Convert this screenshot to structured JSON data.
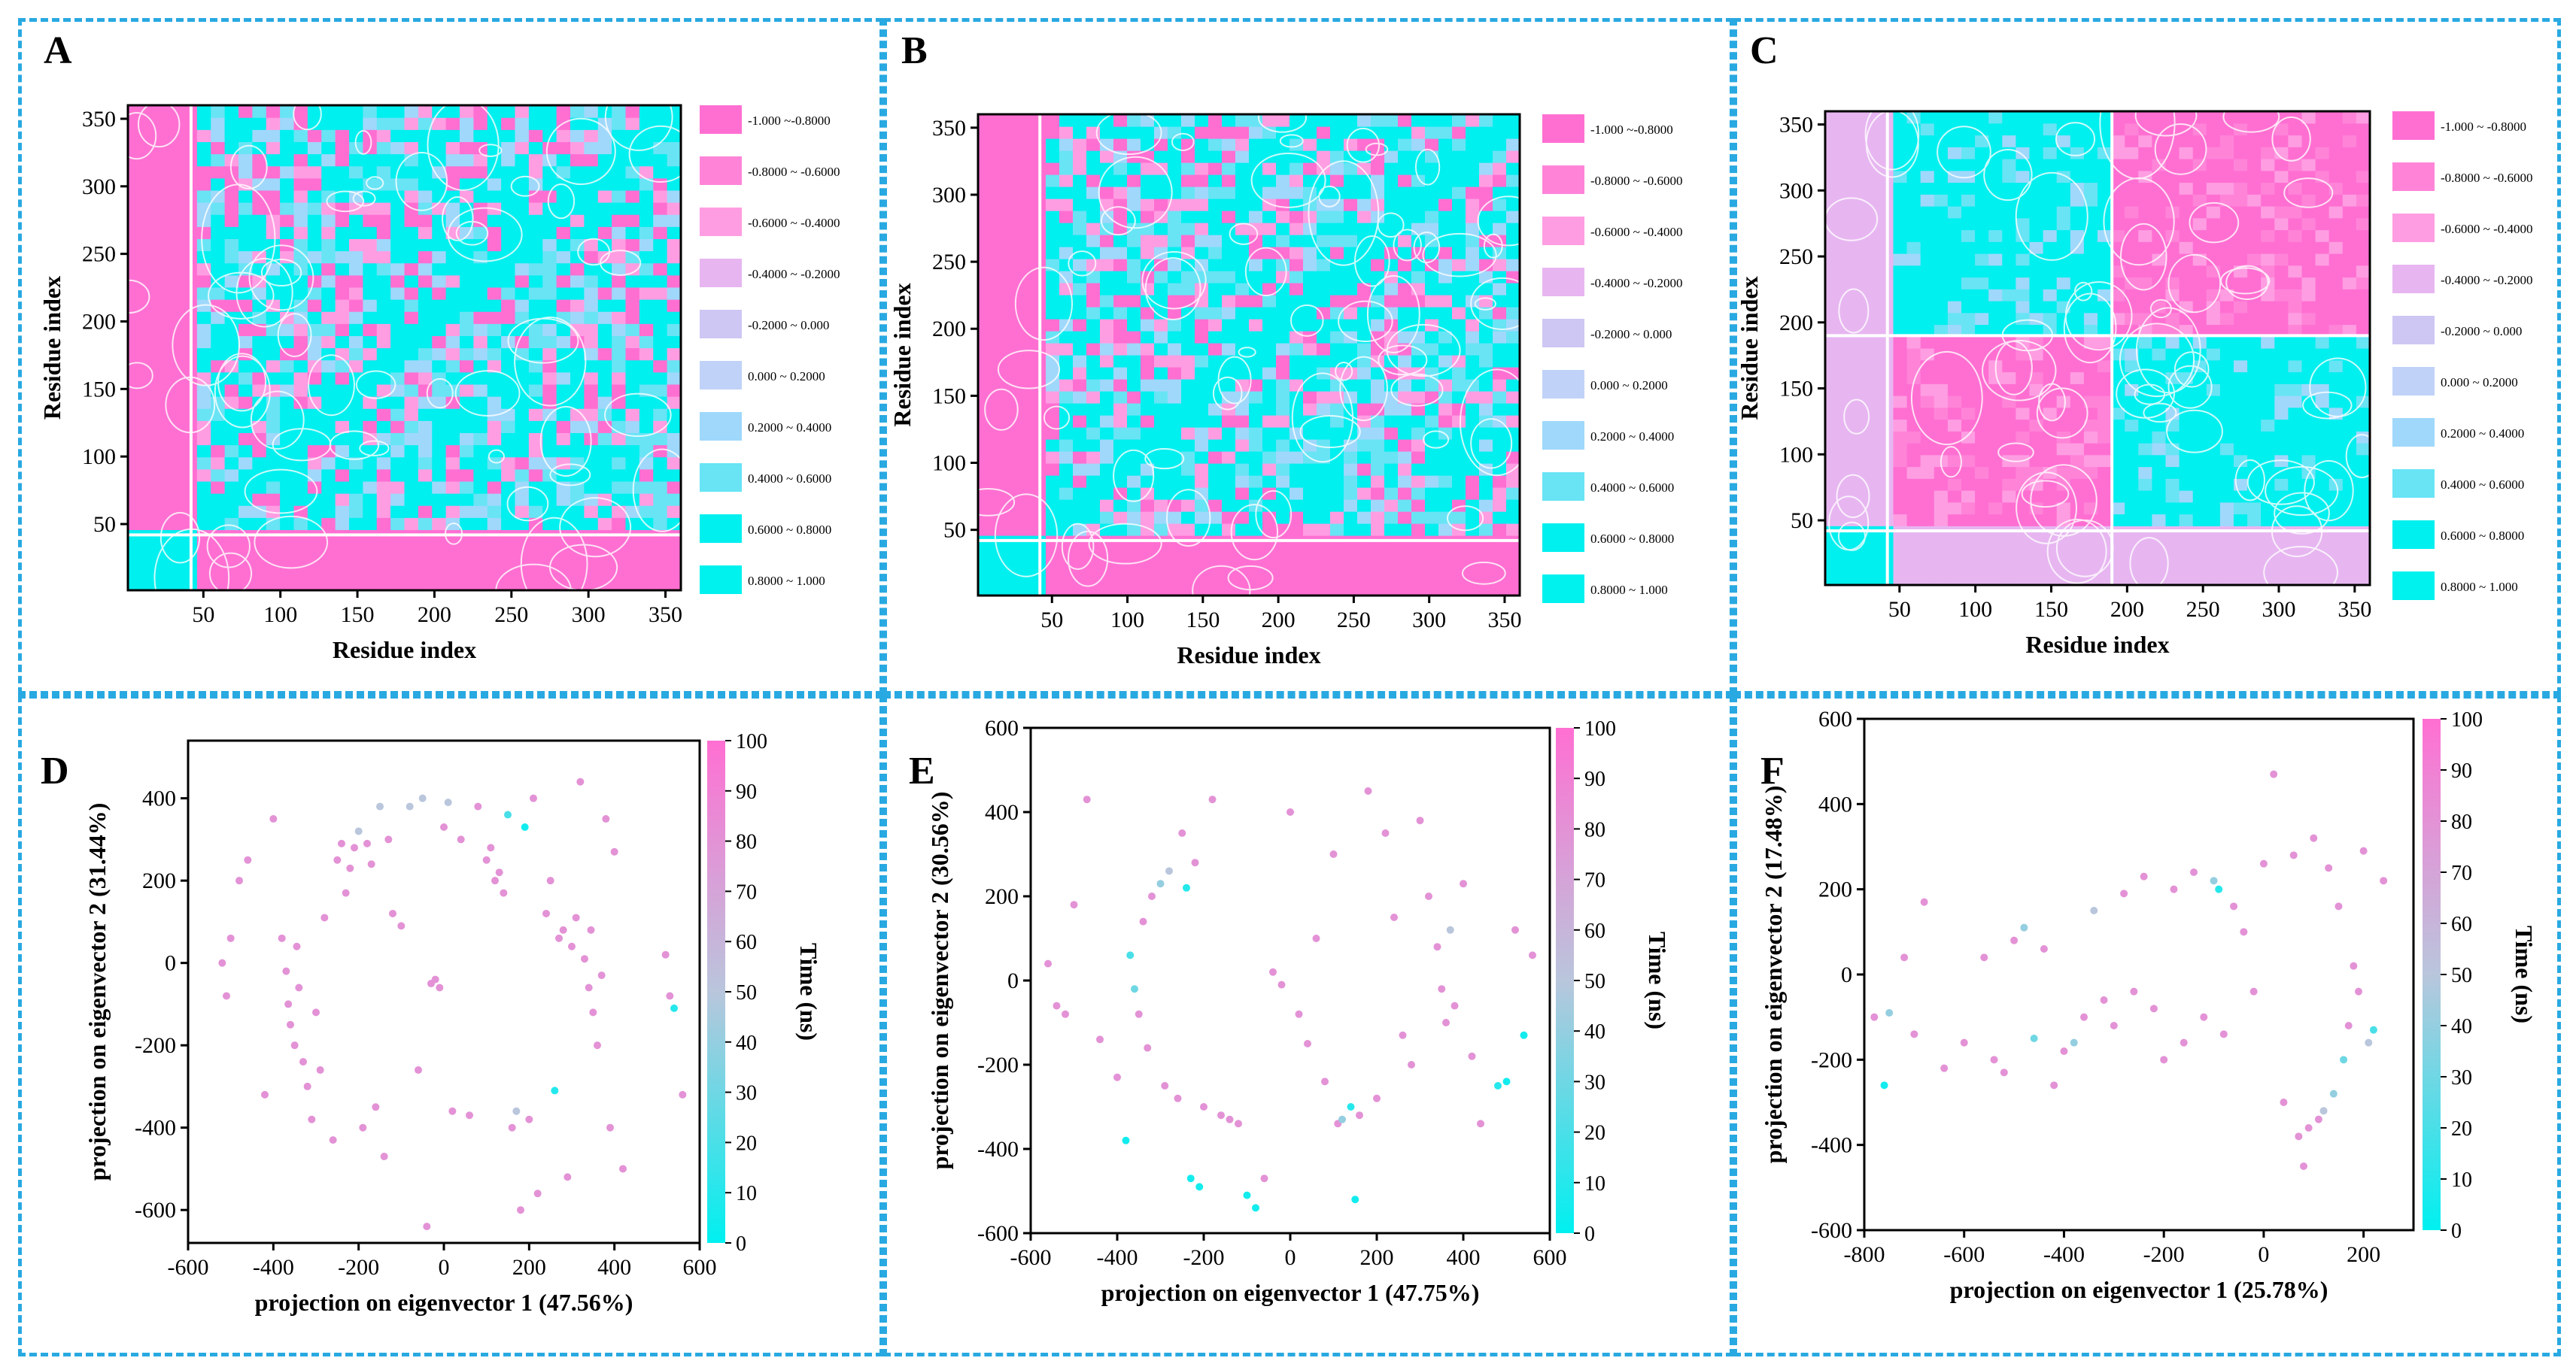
{
  "colors": {
    "frame": "#29a9e1",
    "pink": "#ff6fd2",
    "cyan": "#00efef",
    "light_pink": "#fbd0f1",
    "light_blue": "#b9e3ff",
    "scale": [
      "#ff6fd2",
      "#ff84d8",
      "#ff9de2",
      "#e7b6f1",
      "#cec7f4",
      "#c0d2f8",
      "#9fd8fb",
      "#68e4f5",
      "#00efef",
      "#00f2ee"
    ]
  },
  "legend_labels": [
    "-1.000  ~-0.8000",
    "-0.8000 ~ -0.6000",
    "-0.6000 ~ -0.4000",
    "-0.4000 ~ -0.2000",
    "-0.2000 ~ 0.000",
    "0.000   ~ 0.2000",
    "0.2000 ~ 0.4000",
    "0.4000 ~ 0.6000",
    "0.6000 ~ 0.8000",
    "0.8000 ~ 1.000"
  ],
  "legend_labels_c": [
    "-1.000  ~ -0.8000",
    "-0.8000 ~ -0.6000",
    "-0.6000 ~ -0.4000",
    "-0.4000 ~ -0.2000",
    "-0.2000 ~ 0.000",
    "0.000   ~ 0.2000",
    "0.2000 ~ 0.4000",
    "0.4000 ~ 0.6000",
    "0.6000 ~ 0.8000",
    "0.8000 ~ 1.000"
  ],
  "chart_data": [
    {
      "panel": "A",
      "type": "heatmap",
      "title": "",
      "xlabel": "Residue index",
      "ylabel": "Residue index",
      "xlim": [
        1,
        360
      ],
      "ylim": [
        1,
        360
      ],
      "xticks": [
        50,
        100,
        150,
        200,
        250,
        300,
        350
      ],
      "yticks": [
        50,
        100,
        150,
        200,
        250,
        300,
        350
      ],
      "value_range": [
        -1,
        1
      ],
      "split_residue": 0
    },
    {
      "panel": "B",
      "type": "heatmap",
      "title": "",
      "xlabel": "Residue index",
      "ylabel": "Residue index",
      "xlim": [
        1,
        360
      ],
      "ylim": [
        1,
        360
      ],
      "xticks": [
        50,
        100,
        150,
        200,
        250,
        300,
        350
      ],
      "yticks": [
        50,
        100,
        150,
        200,
        250,
        300,
        350
      ],
      "value_range": [
        -1,
        1
      ],
      "split_residue": 0
    },
    {
      "panel": "C",
      "type": "heatmap",
      "title": "",
      "xlabel": "Residue index",
      "ylabel": "Residue index",
      "xlim": [
        1,
        360
      ],
      "ylim": [
        1,
        360
      ],
      "xticks": [
        50,
        100,
        150,
        200,
        250,
        300,
        350
      ],
      "yticks": [
        50,
        100,
        150,
        200,
        250,
        300,
        350
      ],
      "value_range": [
        -1,
        1
      ],
      "split_residue": 190
    },
    {
      "panel": "D",
      "type": "scatter",
      "xlabel": "projection on eigenvector 1 (47.56%)",
      "ylabel": "projection on eigenvector 2 (31.44%)",
      "xlim": [
        -600,
        600
      ],
      "ylim": [
        -680,
        540
      ],
      "xticks": [
        -600,
        -400,
        -200,
        0,
        200,
        400,
        600
      ],
      "yticks": [
        -600,
        -400,
        -200,
        0,
        200,
        400
      ],
      "colorbar": {
        "label": "Time (ns)",
        "range": [
          0,
          100
        ],
        "ticks": [
          0,
          10,
          20,
          30,
          40,
          50,
          60,
          70,
          80,
          90,
          100
        ]
      },
      "points": [
        [
          -520,
          0,
          80
        ],
        [
          -510,
          -80,
          80
        ],
        [
          -500,
          60,
          80
        ],
        [
          -480,
          200,
          80
        ],
        [
          -460,
          250,
          80
        ],
        [
          -420,
          -320,
          80
        ],
        [
          -400,
          350,
          80
        ],
        [
          -380,
          60,
          80
        ],
        [
          -370,
          -20,
          80
        ],
        [
          -365,
          -100,
          80
        ],
        [
          -360,
          -150,
          80
        ],
        [
          -350,
          -200,
          80
        ],
        [
          -345,
          40,
          80
        ],
        [
          -340,
          -60,
          80
        ],
        [
          -330,
          -240,
          80
        ],
        [
          -320,
          -300,
          80
        ],
        [
          -310,
          -380,
          80
        ],
        [
          -300,
          -120,
          80
        ],
        [
          -290,
          -260,
          80
        ],
        [
          -280,
          110,
          80
        ],
        [
          -260,
          -430,
          80
        ],
        [
          -250,
          250,
          80
        ],
        [
          -240,
          290,
          80
        ],
        [
          -230,
          170,
          80
        ],
        [
          -220,
          230,
          80
        ],
        [
          -210,
          280,
          80
        ],
        [
          -200,
          320,
          50
        ],
        [
          -190,
          -400,
          80
        ],
        [
          -180,
          290,
          80
        ],
        [
          -170,
          240,
          80
        ],
        [
          -160,
          -350,
          80
        ],
        [
          -150,
          380,
          50
        ],
        [
          -140,
          -470,
          80
        ],
        [
          -130,
          300,
          80
        ],
        [
          -120,
          120,
          80
        ],
        [
          -100,
          90,
          80
        ],
        [
          -80,
          380,
          50
        ],
        [
          -60,
          -260,
          80
        ],
        [
          -50,
          400,
          50
        ],
        [
          -40,
          -640,
          80
        ],
        [
          -30,
          -50,
          80
        ],
        [
          -20,
          -40,
          80
        ],
        [
          -10,
          -60,
          80
        ],
        [
          0,
          330,
          80
        ],
        [
          10,
          390,
          50
        ],
        [
          20,
          -360,
          80
        ],
        [
          40,
          300,
          80
        ],
        [
          60,
          -370,
          80
        ],
        [
          80,
          380,
          80
        ],
        [
          100,
          250,
          80
        ],
        [
          110,
          280,
          80
        ],
        [
          120,
          200,
          80
        ],
        [
          130,
          220,
          80
        ],
        [
          140,
          170,
          80
        ],
        [
          150,
          360,
          20
        ],
        [
          160,
          -400,
          80
        ],
        [
          170,
          -360,
          50
        ],
        [
          180,
          -600,
          80
        ],
        [
          190,
          330,
          5
        ],
        [
          200,
          -380,
          80
        ],
        [
          210,
          400,
          80
        ],
        [
          220,
          -560,
          80
        ],
        [
          240,
          120,
          80
        ],
        [
          250,
          200,
          80
        ],
        [
          260,
          -310,
          10
        ],
        [
          270,
          60,
          80
        ],
        [
          280,
          80,
          80
        ],
        [
          290,
          -520,
          80
        ],
        [
          300,
          40,
          80
        ],
        [
          310,
          110,
          80
        ],
        [
          320,
          440,
          80
        ],
        [
          330,
          10,
          80
        ],
        [
          340,
          -60,
          80
        ],
        [
          345,
          80,
          80
        ],
        [
          350,
          -120,
          80
        ],
        [
          360,
          -200,
          80
        ],
        [
          370,
          -30,
          80
        ],
        [
          380,
          350,
          80
        ],
        [
          390,
          -400,
          80
        ],
        [
          400,
          270,
          80
        ],
        [
          420,
          -500,
          80
        ],
        [
          520,
          20,
          80
        ],
        [
          530,
          -80,
          80
        ],
        [
          540,
          -110,
          10
        ],
        [
          560,
          -320,
          80
        ]
      ]
    },
    {
      "panel": "E",
      "type": "scatter",
      "xlabel": "projection on eigenvector 1 (47.75%)",
      "ylabel": "projection on eigenvector 2 (30.56%)",
      "xlim": [
        -600,
        600
      ],
      "ylim": [
        -600,
        600
      ],
      "xticks": [
        -600,
        -400,
        -200,
        0,
        200,
        400,
        600
      ],
      "yticks": [
        -600,
        -400,
        -200,
        0,
        200,
        400,
        600
      ],
      "colorbar": {
        "label": "Time (ns)",
        "range": [
          0,
          100
        ],
        "ticks": [
          0,
          10,
          20,
          30,
          40,
          50,
          60,
          70,
          80,
          90,
          100
        ]
      },
      "points": [
        [
          -560,
          40,
          80
        ],
        [
          -540,
          -60,
          80
        ],
        [
          -520,
          -80,
          80
        ],
        [
          -500,
          180,
          80
        ],
        [
          -470,
          430,
          80
        ],
        [
          -440,
          -140,
          80
        ],
        [
          -400,
          -230,
          80
        ],
        [
          -380,
          -380,
          5
        ],
        [
          -370,
          60,
          20
        ],
        [
          -360,
          -20,
          30
        ],
        [
          -350,
          -80,
          80
        ],
        [
          -340,
          140,
          80
        ],
        [
          -330,
          -160,
          80
        ],
        [
          -320,
          200,
          80
        ],
        [
          -300,
          230,
          40
        ],
        [
          -290,
          -250,
          80
        ],
        [
          -280,
          260,
          50
        ],
        [
          -260,
          -280,
          80
        ],
        [
          -250,
          350,
          80
        ],
        [
          -240,
          220,
          10
        ],
        [
          -230,
          -470,
          5
        ],
        [
          -220,
          280,
          80
        ],
        [
          -210,
          -490,
          5
        ],
        [
          -200,
          -300,
          80
        ],
        [
          -180,
          430,
          80
        ],
        [
          -160,
          -320,
          80
        ],
        [
          -140,
          -330,
          80
        ],
        [
          -120,
          -340,
          80
        ],
        [
          -100,
          -510,
          5
        ],
        [
          -80,
          -540,
          5
        ],
        [
          -60,
          -470,
          80
        ],
        [
          -40,
          20,
          80
        ],
        [
          -20,
          -10,
          80
        ],
        [
          0,
          400,
          80
        ],
        [
          20,
          -80,
          80
        ],
        [
          40,
          -150,
          80
        ],
        [
          60,
          100,
          80
        ],
        [
          80,
          -240,
          80
        ],
        [
          100,
          300,
          80
        ],
        [
          110,
          -340,
          80
        ],
        [
          120,
          -330,
          40
        ],
        [
          140,
          -300,
          10
        ],
        [
          150,
          -520,
          5
        ],
        [
          160,
          -320,
          80
        ],
        [
          180,
          450,
          80
        ],
        [
          200,
          -280,
          80
        ],
        [
          220,
          350,
          80
        ],
        [
          240,
          150,
          80
        ],
        [
          260,
          -130,
          80
        ],
        [
          280,
          -200,
          80
        ],
        [
          300,
          380,
          80
        ],
        [
          320,
          200,
          80
        ],
        [
          340,
          80,
          80
        ],
        [
          350,
          -20,
          80
        ],
        [
          360,
          -100,
          80
        ],
        [
          370,
          120,
          50
        ],
        [
          380,
          -60,
          80
        ],
        [
          400,
          230,
          80
        ],
        [
          420,
          -180,
          80
        ],
        [
          440,
          -340,
          80
        ],
        [
          480,
          -250,
          10
        ],
        [
          500,
          -240,
          5
        ],
        [
          520,
          120,
          80
        ],
        [
          540,
          -130,
          5
        ],
        [
          560,
          60,
          80
        ]
      ]
    },
    {
      "panel": "F",
      "type": "scatter",
      "xlabel": "projection on eigenvector 1 (25.78%)",
      "ylabel": "projection on eigenvector 2 (17.48%)",
      "xlim": [
        -800,
        300
      ],
      "ylim": [
        -600,
        600
      ],
      "xticks": [
        -800,
        -600,
        -400,
        -200,
        0,
        200
      ],
      "yticks": [
        -600,
        -400,
        -200,
        0,
        200,
        400,
        600
      ],
      "colorbar": {
        "label": "Time (ns)",
        "range": [
          0,
          100
        ],
        "ticks": [
          0,
          10,
          20,
          30,
          40,
          50,
          60,
          70,
          80,
          90,
          100
        ]
      },
      "points": [
        [
          -780,
          -100,
          80
        ],
        [
          -760,
          -260,
          5
        ],
        [
          -750,
          -90,
          40
        ],
        [
          -720,
          40,
          80
        ],
        [
          -700,
          -140,
          80
        ],
        [
          -680,
          170,
          80
        ],
        [
          -640,
          -220,
          80
        ],
        [
          -600,
          -160,
          80
        ],
        [
          -560,
          40,
          80
        ],
        [
          -540,
          -200,
          80
        ],
        [
          -520,
          -230,
          80
        ],
        [
          -500,
          80,
          80
        ],
        [
          -480,
          110,
          40
        ],
        [
          -460,
          -150,
          30
        ],
        [
          -440,
          60,
          80
        ],
        [
          -420,
          -260,
          80
        ],
        [
          -400,
          -180,
          80
        ],
        [
          -380,
          -160,
          40
        ],
        [
          -360,
          -100,
          80
        ],
        [
          -340,
          150,
          50
        ],
        [
          -320,
          -60,
          80
        ],
        [
          -300,
          -120,
          80
        ],
        [
          -280,
          190,
          80
        ],
        [
          -260,
          -40,
          80
        ],
        [
          -240,
          230,
          80
        ],
        [
          -220,
          -80,
          80
        ],
        [
          -200,
          -200,
          80
        ],
        [
          -180,
          200,
          80
        ],
        [
          -160,
          -160,
          80
        ],
        [
          -140,
          240,
          80
        ],
        [
          -120,
          -100,
          80
        ],
        [
          -100,
          220,
          40
        ],
        [
          -90,
          200,
          10
        ],
        [
          -80,
          -140,
          80
        ],
        [
          -60,
          160,
          80
        ],
        [
          -40,
          100,
          80
        ],
        [
          -20,
          -40,
          80
        ],
        [
          0,
          260,
          80
        ],
        [
          20,
          470,
          80
        ],
        [
          40,
          -300,
          80
        ],
        [
          60,
          280,
          80
        ],
        [
          70,
          -380,
          80
        ],
        [
          80,
          -450,
          80
        ],
        [
          90,
          -360,
          80
        ],
        [
          100,
          320,
          80
        ],
        [
          110,
          -340,
          80
        ],
        [
          120,
          -320,
          50
        ],
        [
          130,
          250,
          80
        ],
        [
          140,
          -280,
          40
        ],
        [
          150,
          160,
          80
        ],
        [
          160,
          -200,
          30
        ],
        [
          170,
          -120,
          80
        ],
        [
          180,
          20,
          80
        ],
        [
          190,
          -40,
          80
        ],
        [
          200,
          290,
          80
        ],
        [
          210,
          -160,
          50
        ],
        [
          220,
          -130,
          20
        ],
        [
          240,
          220,
          80
        ]
      ]
    }
  ]
}
